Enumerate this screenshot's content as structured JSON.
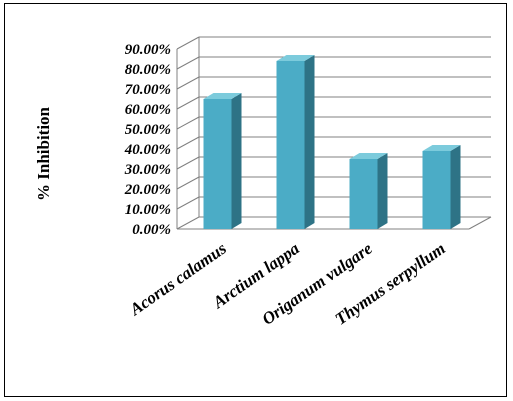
{
  "chart_data": {
    "type": "bar",
    "categories": [
      "Acorus calamus",
      "Arctium lappa",
      "Origanum vulgare",
      "Thymus serpyllum"
    ],
    "values": [
      0.65,
      0.84,
      0.35,
      0.39
    ],
    "ylabel": "% Inhibition",
    "xlabel": "",
    "title": "",
    "ylim": [
      0,
      0.9
    ],
    "yticks": [
      "0.00%",
      "10.00%",
      "20.00%",
      "30.00%",
      "40.00%",
      "50.00%",
      "60.00%",
      "70.00%",
      "80.00%",
      "90.00%"
    ],
    "grid": true,
    "legend": "none",
    "colors": {
      "bar_front": "#4bacc6",
      "bar_side": "#2e7386",
      "bar_top": "#7ccbdc",
      "grid": "#808080"
    }
  }
}
